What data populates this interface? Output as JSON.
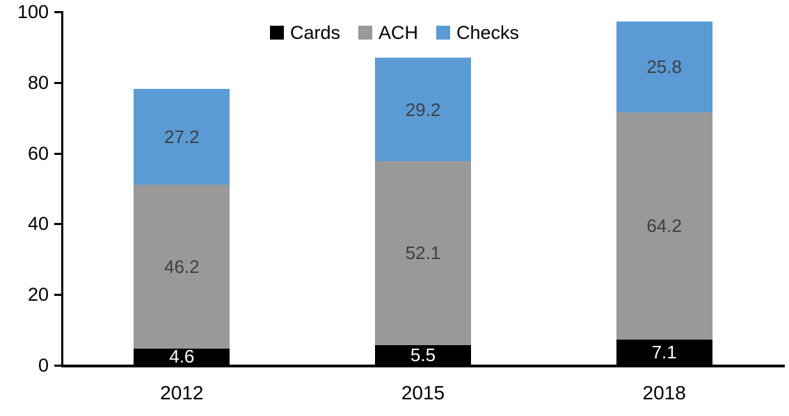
{
  "chart_data": {
    "type": "bar",
    "stacked": true,
    "title": "",
    "xlabel": "",
    "ylabel": "",
    "categories": [
      "2012",
      "2015",
      "2018"
    ],
    "series": [
      {
        "name": "Cards",
        "color": "#000000",
        "label_color": "#ffffff",
        "values": [
          4.6,
          5.5,
          7.1
        ]
      },
      {
        "name": "ACH",
        "color": "#999999",
        "label_color": "#404040",
        "values": [
          46.2,
          52.1,
          64.2
        ]
      },
      {
        "name": "Checks",
        "color": "#5B9BD5",
        "label_color": "#404040",
        "values": [
          27.2,
          29.2,
          25.8
        ]
      }
    ],
    "totals": [
      78.0,
      86.8,
      97.1
    ],
    "ylim": [
      0,
      100
    ],
    "yticks": [
      0,
      20,
      40,
      60,
      80,
      100
    ],
    "grid": false,
    "legend_position": "top-center",
    "axis_color": "#000000"
  }
}
